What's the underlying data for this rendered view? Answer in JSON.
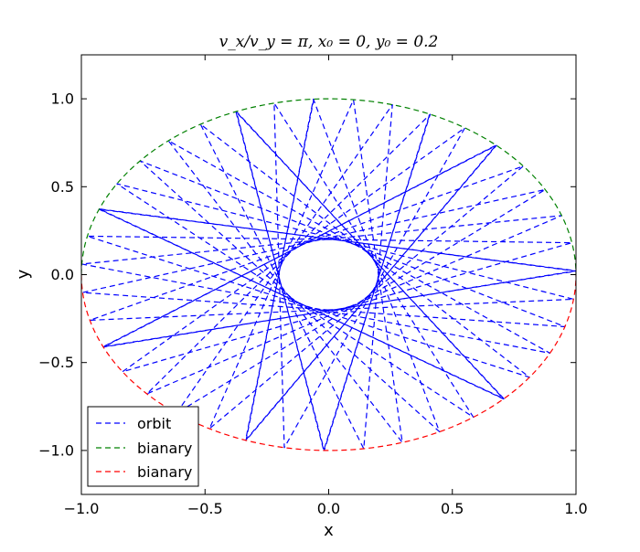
{
  "chart_data": {
    "type": "line",
    "title": "v_x/v_y = π, x₀ = 0, y₀ = 0.2",
    "xlabel": "x",
    "ylabel": "y",
    "xlim": [
      -1.0,
      1.0
    ],
    "ylim": [
      -1.25,
      1.25
    ],
    "xticks": [
      -1.0,
      -0.5,
      0.0,
      0.5,
      1.0
    ],
    "xtick_labels": [
      "−1.0",
      "−0.5",
      "0.0",
      "0.5",
      "1.0"
    ],
    "yticks": [
      -1.0,
      -0.5,
      0.0,
      0.5,
      1.0
    ],
    "ytick_labels": [
      "−1.0",
      "−0.5",
      "0.0",
      "0.5",
      "1.0"
    ],
    "grid": false,
    "legend_position": "lower-left",
    "series": [
      {
        "name": "orbit",
        "color": "#0000ff",
        "style": "dashed",
        "kind": "star-orbit",
        "outer_radius": 1.0,
        "inner_radius": 0.2,
        "velocity_ratio": 3.14159,
        "segments": 48
      },
      {
        "name": "bianary",
        "color": "#008000",
        "style": "dashed",
        "kind": "unit-circle-arc",
        "y_sign": "positive",
        "x": [
          -1.0,
          -0.9,
          -0.8,
          -0.7,
          -0.6,
          -0.5,
          -0.4,
          -0.3,
          -0.2,
          -0.1,
          0.0,
          0.1,
          0.2,
          0.3,
          0.4,
          0.5,
          0.6,
          0.7,
          0.8,
          0.9,
          1.0
        ],
        "y": [
          0.0,
          0.436,
          0.6,
          0.714,
          0.8,
          0.866,
          0.917,
          0.954,
          0.98,
          0.995,
          1.0,
          0.995,
          0.98,
          0.954,
          0.917,
          0.866,
          0.8,
          0.714,
          0.6,
          0.436,
          0.0
        ]
      },
      {
        "name": "bianary",
        "color": "#ff0000",
        "style": "dashed",
        "kind": "unit-circle-arc",
        "y_sign": "negative",
        "x": [
          -1.0,
          -0.9,
          -0.8,
          -0.7,
          -0.6,
          -0.5,
          -0.4,
          -0.3,
          -0.2,
          -0.1,
          0.0,
          0.1,
          0.2,
          0.3,
          0.4,
          0.5,
          0.6,
          0.7,
          0.8,
          0.9,
          1.0
        ],
        "y": [
          0.0,
          -0.436,
          -0.6,
          -0.714,
          -0.8,
          -0.866,
          -0.917,
          -0.954,
          -0.98,
          -0.995,
          -1.0,
          -0.995,
          -0.98,
          -0.954,
          -0.917,
          -0.866,
          -0.8,
          -0.714,
          -0.6,
          -0.436,
          0.0
        ]
      }
    ]
  }
}
